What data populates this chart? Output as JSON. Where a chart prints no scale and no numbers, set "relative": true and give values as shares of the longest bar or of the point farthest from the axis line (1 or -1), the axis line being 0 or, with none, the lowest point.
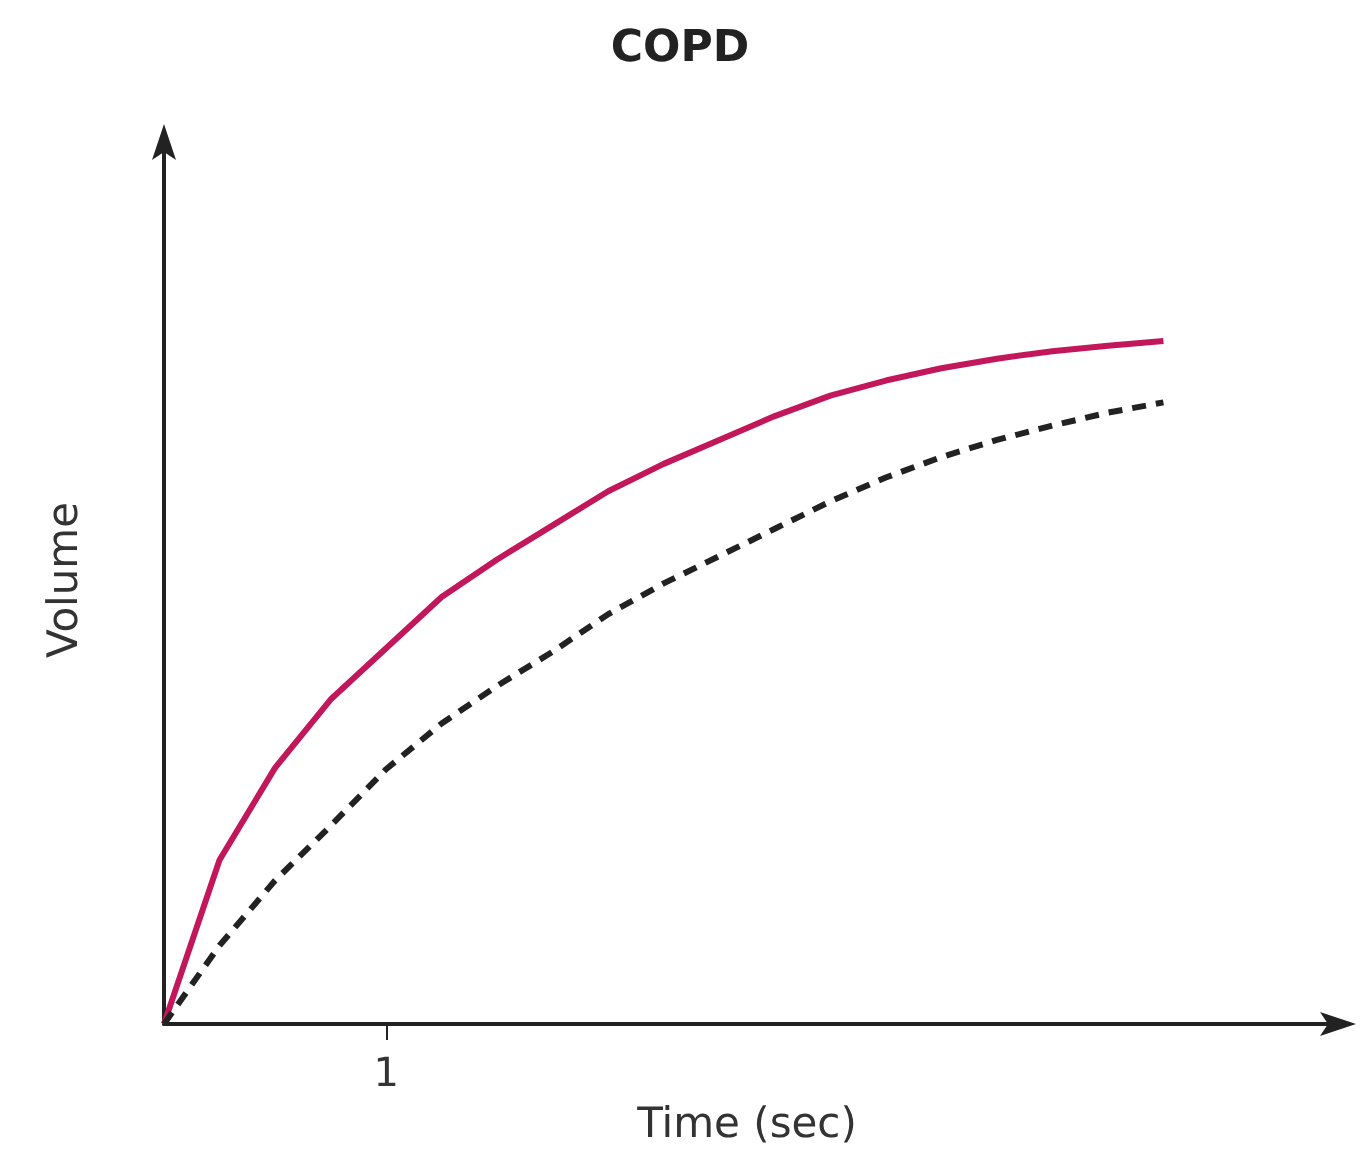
{
  "chart_data": {
    "type": "line",
    "title": "COPD",
    "xlabel": "Time (sec)",
    "ylabel": "Volume",
    "relative": true,
    "annotations": [
      "1"
    ],
    "marker": "none",
    "categories": [
      null,
      null,
      null,
      null,
      null,
      null,
      null,
      null,
      null,
      null,
      null,
      null,
      null,
      null,
      null,
      null,
      null,
      null,
      null,
      null,
      null,
      null
    ],
    "series": [
      {
        "color": "#c2185b",
        "line_style": "solid",
        "values": [
          0,
          0.24,
          0.375,
          0.475,
          0.55,
          0.625,
          0.68,
          0.73,
          0.78,
          0.82,
          0.855,
          0.89,
          0.92,
          0.942,
          0.96,
          0.974,
          0.985,
          0.993,
          1,
          null,
          null,
          null
        ]
      },
      {
        "color": "#222222",
        "line_style": "dashed",
        "values": [
          0,
          0.115,
          0.21,
          0.29,
          0.373,
          0.44,
          0.495,
          0.545,
          0.6,
          0.645,
          0.685,
          0.725,
          0.765,
          0.8,
          0.83,
          0.855,
          0.876,
          0.895,
          0.91,
          null,
          null,
          null
        ]
      }
    ]
  }
}
